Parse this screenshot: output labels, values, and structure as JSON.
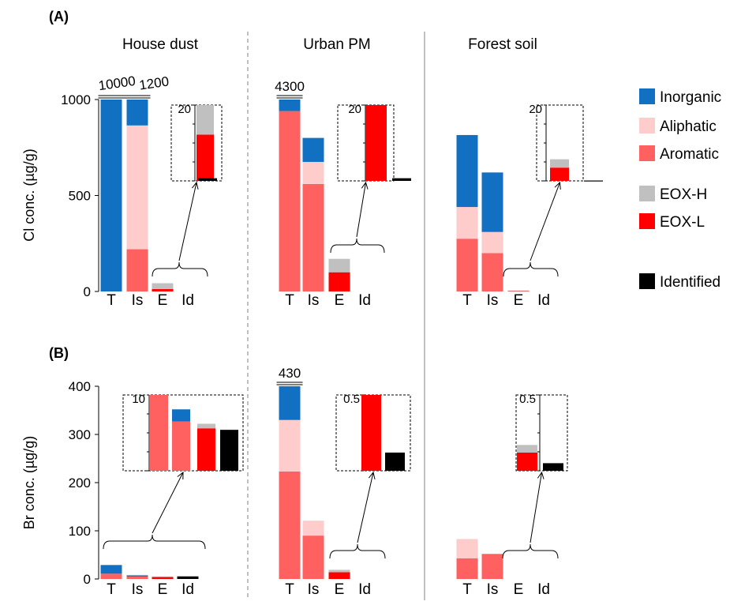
{
  "panel_labels": [
    "(A)",
    "(B)"
  ],
  "group_titles": [
    "House dust",
    "Urban PM",
    "Forest soil"
  ],
  "bar_categories": [
    "T",
    "Is",
    "E",
    "Id"
  ],
  "colors": {
    "Inorganic": "#1170C1",
    "Aliphatic": "#FFCCCC",
    "Aromatic": "#FF6161",
    "EOX-H": "#C0C0C0",
    "EOX-L": "#FF0000",
    "Identified": "#000000"
  },
  "legend": [
    "Inorganic",
    "Aliphatic",
    "Aromatic",
    "EOX-H",
    "EOX-L",
    "Identified"
  ],
  "chart_data": [
    {
      "type": "bar",
      "panel": "(A)",
      "ylabel": "Cl conc. (µg/g)",
      "ylim": [
        0,
        1000
      ],
      "yticks": [
        0,
        500,
        1000
      ],
      "groups": [
        {
          "name": "House dust",
          "bars": [
            {
              "category": "T",
              "stacks": {
                "Inorganic": 1000
              },
              "truncated_label": "10000"
            },
            {
              "category": "Is",
              "stacks": {
                "Aromatic": 220,
                "Aliphatic": 645,
                "Inorganic": 135
              },
              "truncated_label": "1200"
            },
            {
              "category": "E",
              "stacks": {
                "EOX-L": 13,
                "EOX-H": 30
              }
            },
            {
              "category": "Id",
              "stacks": {}
            }
          ],
          "inset": {
            "ymax": 20,
            "ymax_label": "20",
            "bars": [
              {
                "category": "E",
                "stacks": {
                  "EOX-L": 12.2,
                  "EOX-H": 7.8
                }
              },
              {
                "category": "Id",
                "stacks": {
                  "Identified": 0.7
                }
              }
            ]
          }
        },
        {
          "name": "Urban PM",
          "bars": [
            {
              "category": "T",
              "stacks": {
                "Aromatic": 940,
                "Inorganic": 60
              },
              "truncated_label": "4300"
            },
            {
              "category": "Is",
              "stacks": {
                "Aromatic": 560,
                "Aliphatic": 115,
                "Inorganic": 125
              }
            },
            {
              "category": "E",
              "stacks": {
                "EOX-L": 100,
                "EOX-H": 70
              }
            },
            {
              "category": "Id",
              "stacks": {}
            }
          ],
          "inset": {
            "ymax": 20,
            "ymax_label": "20",
            "bars": [
              {
                "category": "E",
                "stacks": {
                  "EOX-L": 20
                }
              },
              {
                "category": "Id",
                "stacks": {
                  "Identified": 0.7
                }
              }
            ]
          }
        },
        {
          "name": "Forest soil",
          "bars": [
            {
              "category": "T",
              "stacks": {
                "Aromatic": 275,
                "Aliphatic": 165,
                "Inorganic": 375
              }
            },
            {
              "category": "Is",
              "stacks": {
                "Aromatic": 200,
                "Aliphatic": 110,
                "Inorganic": 310
              }
            },
            {
              "category": "E",
              "stacks": {
                "EOX-L": 3,
                "EOX-H": 2
              }
            },
            {
              "category": "Id",
              "stacks": {}
            }
          ],
          "inset": {
            "ymax": 20,
            "ymax_label": "20",
            "bars": [
              {
                "category": "E",
                "stacks": {
                  "EOX-L": 3.5,
                  "EOX-H": 2.2
                }
              },
              {
                "category": "Id",
                "stacks": {
                  "Identified": 0.1
                }
              }
            ]
          }
        }
      ]
    },
    {
      "type": "bar",
      "panel": "(B)",
      "ylabel": "Br conc. (µg/g)",
      "ylim": [
        0,
        400
      ],
      "yticks": [
        0,
        100,
        200,
        300,
        400
      ],
      "groups": [
        {
          "name": "House dust",
          "bars": [
            {
              "category": "T",
              "stacks": {
                "Aromatic": 11,
                "Inorganic": 18
              }
            },
            {
              "category": "Is",
              "stacks": {
                "Aromatic": 5,
                "Inorganic": 2.5,
                "EOX-H": 1
              }
            },
            {
              "category": "E",
              "stacks": {
                "EOX-L": 4.5,
                "EOX-H": 0.7
              }
            },
            {
              "category": "Id",
              "stacks": {
                "Identified": 5.4
              }
            }
          ],
          "inset": {
            "ymax": 10,
            "ymax_label": "10",
            "bars": [
              {
                "category": "T",
                "stacks": {
                  "Aromatic": 10
                }
              },
              {
                "category": "Is",
                "stacks": {
                  "Aromatic": 6.5,
                  "Inorganic": 1.6
                }
              },
              {
                "category": "E",
                "stacks": {
                  "EOX-L": 5.6,
                  "EOX-H": 0.6
                }
              },
              {
                "category": "Id",
                "stacks": {
                  "Identified": 5.4
                }
              }
            ]
          }
        },
        {
          "name": "Urban PM",
          "bars": [
            {
              "category": "T",
              "stacks": {
                "Aromatic": 223,
                "Aliphatic": 107,
                "Inorganic": 70
              },
              "truncated_label": "430"
            },
            {
              "category": "Is",
              "stacks": {
                "Aromatic": 90,
                "Aliphatic": 31
              }
            },
            {
              "category": "E",
              "stacks": {
                "EOX-L": 14,
                "EOX-H": 5
              }
            },
            {
              "category": "Id",
              "stacks": {}
            }
          ],
          "inset": {
            "ymax": 0.5,
            "ymax_label": "0.5",
            "bars": [
              {
                "category": "E",
                "stacks": {
                  "EOX-L": 0.5
                }
              },
              {
                "category": "Id",
                "stacks": {
                  "Identified": 0.12
                }
              }
            ]
          }
        },
        {
          "name": "Forest soil",
          "bars": [
            {
              "category": "T",
              "stacks": {
                "Aromatic": 43,
                "Aliphatic": 40
              }
            },
            {
              "category": "Is",
              "stacks": {
                "Aromatic": 52
              }
            },
            {
              "category": "E",
              "stacks": {}
            },
            {
              "category": "Id",
              "stacks": {}
            }
          ],
          "inset": {
            "ymax": 0.5,
            "ymax_label": "0.5",
            "bars": [
              {
                "category": "E",
                "stacks": {
                  "EOX-L": 0.12,
                  "EOX-H": 0.05
                }
              },
              {
                "category": "Id",
                "stacks": {
                  "Identified": 0.05
                }
              }
            ]
          }
        }
      ]
    }
  ]
}
